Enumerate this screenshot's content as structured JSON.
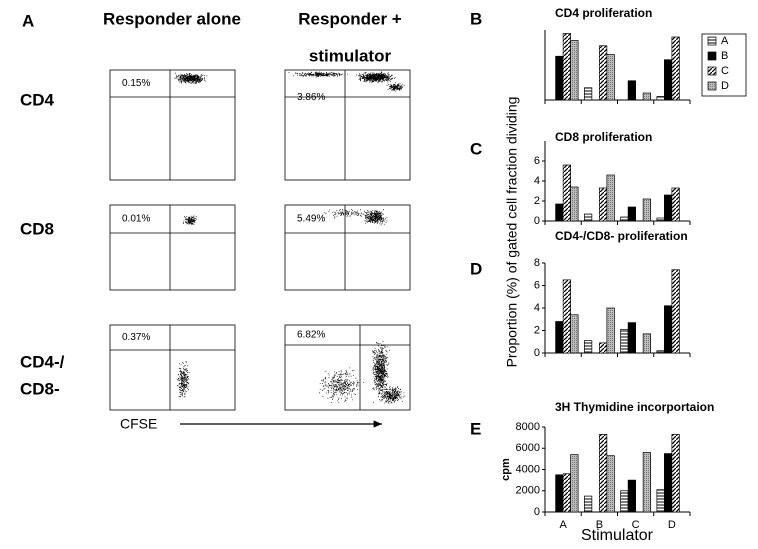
{
  "panel_a": {
    "letter": "A",
    "col_headers": [
      "Responder alone",
      "Responder +",
      "stimulator"
    ],
    "rows": [
      {
        "label": [
          "CD4"
        ],
        "values": [
          "0.15%",
          "3.86%"
        ]
      },
      {
        "label": [
          "CD8"
        ],
        "values": [
          "0.01%",
          "5.49%"
        ]
      },
      {
        "label": [
          "CD4-/",
          "CD8-"
        ],
        "values": [
          "0.37%",
          "6.82%"
        ]
      }
    ],
    "axis_label": "CFSE"
  },
  "shared_axes": {
    "y_label": "Proportion (%) of gated cell fraction dividing",
    "x_label": "Stimulator"
  },
  "chart_data": [
    {
      "type": "bar",
      "panel": "B",
      "title": "CD4 proliferation",
      "ylim": [
        0,
        4
      ],
      "yticks": [],
      "series": [
        {
          "name": "A",
          "color": "#ffffff",
          "pattern": "horizontal",
          "values": [
            0,
            0.7,
            0,
            0.2
          ]
        },
        {
          "name": "B",
          "color": "#000000",
          "pattern": "solid",
          "values": [
            2.5,
            0,
            1.1,
            2.3
          ]
        },
        {
          "name": "C",
          "color": "#ffffff",
          "pattern": "diagonal",
          "values": [
            3.8,
            3.1,
            0,
            3.6
          ]
        },
        {
          "name": "D",
          "color": "#b0b0b0",
          "pattern": "dotted",
          "values": [
            3.4,
            2.6,
            0.4,
            0
          ]
        }
      ],
      "legend": "right"
    },
    {
      "type": "bar",
      "panel": "C",
      "title": "CD8 proliferation",
      "ylim": [
        0,
        8
      ],
      "yticks": [
        0,
        2,
        4,
        6
      ],
      "series": [
        {
          "color": "#ffffff",
          "pattern": "horizontal",
          "values": [
            0,
            0.7,
            0.4,
            0.3
          ]
        },
        {
          "color": "#000000",
          "pattern": "solid",
          "values": [
            1.7,
            0,
            1.4,
            2.6
          ]
        },
        {
          "color": "#ffffff",
          "pattern": "diagonal",
          "values": [
            5.6,
            3.3,
            0,
            3.3
          ]
        },
        {
          "color": "#b0b0b0",
          "pattern": "dotted",
          "values": [
            3.4,
            4.6,
            2.2,
            0
          ]
        }
      ]
    },
    {
      "type": "bar",
      "panel": "D",
      "title": "CD4-/CD8- proliferation",
      "ylim": [
        0,
        8
      ],
      "yticks": [
        0,
        2,
        4,
        6,
        8
      ],
      "series": [
        {
          "color": "#ffffff",
          "pattern": "horizontal",
          "values": [
            0,
            1.1,
            2.1,
            0.2
          ]
        },
        {
          "color": "#000000",
          "pattern": "solid",
          "values": [
            2.8,
            0,
            2.7,
            4.2
          ]
        },
        {
          "color": "#ffffff",
          "pattern": "diagonal",
          "values": [
            6.5,
            0.9,
            0,
            7.4
          ]
        },
        {
          "color": "#b0b0b0",
          "pattern": "dotted",
          "values": [
            3.4,
            4.0,
            1.7,
            0
          ]
        }
      ]
    },
    {
      "type": "bar",
      "panel": "E",
      "title": "3H Thymidine incorportaion",
      "y_label": "cpm",
      "ylim": [
        0,
        8000
      ],
      "yticks": [
        0,
        2000,
        4000,
        6000,
        8000
      ],
      "categories": [
        "A",
        "B",
        "C",
        "D"
      ],
      "series": [
        {
          "color": "#ffffff",
          "pattern": "horizontal",
          "values": [
            0,
            1500,
            2000,
            2100
          ]
        },
        {
          "color": "#000000",
          "pattern": "solid",
          "values": [
            3500,
            0,
            3000,
            5500
          ]
        },
        {
          "color": "#ffffff",
          "pattern": "diagonal",
          "values": [
            3600,
            7300,
            0,
            7300
          ]
        },
        {
          "color": "#b0b0b0",
          "pattern": "dotted",
          "values": [
            5400,
            5300,
            5600,
            0
          ]
        }
      ]
    }
  ]
}
